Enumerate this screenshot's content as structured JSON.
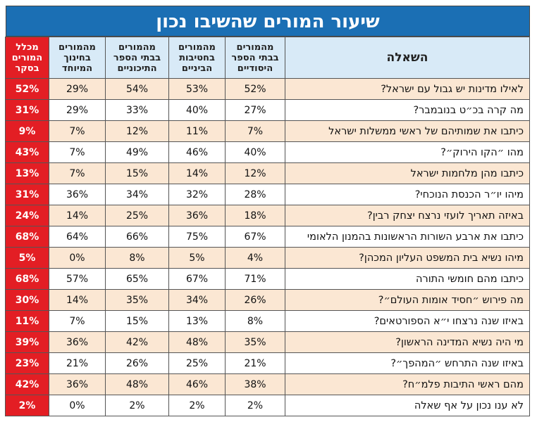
{
  "title": "שיעור המורים שהשיבו נכון",
  "table": {
    "headers": [
      [
        "השאלה"
      ],
      [
        "מהמורים",
        "בבתי הספר",
        "היסודיים"
      ],
      [
        "מהמורים",
        "בחטיבות",
        "הביניים"
      ],
      [
        "מהמורים",
        "בבתי הספר",
        "התיכוניים"
      ],
      [
        "מהמורים",
        "בחינוך",
        "המיוחד"
      ],
      [
        "מכלל",
        "המורים",
        "בסקר"
      ]
    ],
    "rows": [
      [
        "לאילו מדינות יש גבול עם ישראל?",
        "52%",
        "53%",
        "54%",
        "29%",
        "52%"
      ],
      [
        "מה קרה בכ״ט בנובמבר?",
        "27%",
        "40%",
        "33%",
        "29%",
        "31%"
      ],
      [
        "כיתבו את שמותיהם של ראשי ממשלות ישראל",
        "7%",
        "11%",
        "12%",
        "7%",
        "9%"
      ],
      [
        "מהו ״הקו הירוק״?",
        "40%",
        "46%",
        "49%",
        "7%",
        "43%"
      ],
      [
        "כיתבו מהן מלחמות ישראל",
        "12%",
        "14%",
        "15%",
        "7%",
        "13%"
      ],
      [
        "מיהו יו״ר הכנסת הנוכחי?",
        "28%",
        "32%",
        "34%",
        "36%",
        "31%"
      ],
      [
        "באיזה תאריך לועזי נרצח יצחק רבין?",
        "18%",
        "36%",
        "25%",
        "14%",
        "24%"
      ],
      [
        "כיתבו את ארבע השורות הראשונות בהמנון הלאומי",
        "67%",
        "75%",
        "66%",
        "64%",
        "68%"
      ],
      [
        "מיהו נשיא בית המשפט העליון המכהן?",
        "4%",
        "5%",
        "8%",
        "0%",
        "5%"
      ],
      [
        "כיתבו מהם חומשי התורה",
        "71%",
        "67%",
        "65%",
        "57%",
        "68%"
      ],
      [
        "מה פירוש ״חסיד אומות העולם״?",
        "26%",
        "34%",
        "35%",
        "14%",
        "30%"
      ],
      [
        "באיזו שנה נרצחו י״א הספורטאים?",
        "8%",
        "13%",
        "15%",
        "7%",
        "11%"
      ],
      [
        "מי היה נשיא המדינה הראשון?",
        "35%",
        "48%",
        "42%",
        "36%",
        "39%"
      ],
      [
        "באיזו שנה התרחש ״המהפך״?",
        "21%",
        "25%",
        "26%",
        "21%",
        "23%"
      ],
      [
        "מהם ראשי התיבות פלמ״ח?",
        "38%",
        "46%",
        "48%",
        "36%",
        "42%"
      ],
      [
        "לא ענו נכון על אף שאלה",
        "2%",
        "2%",
        "2%",
        "0%",
        "2%"
      ]
    ]
  }
}
